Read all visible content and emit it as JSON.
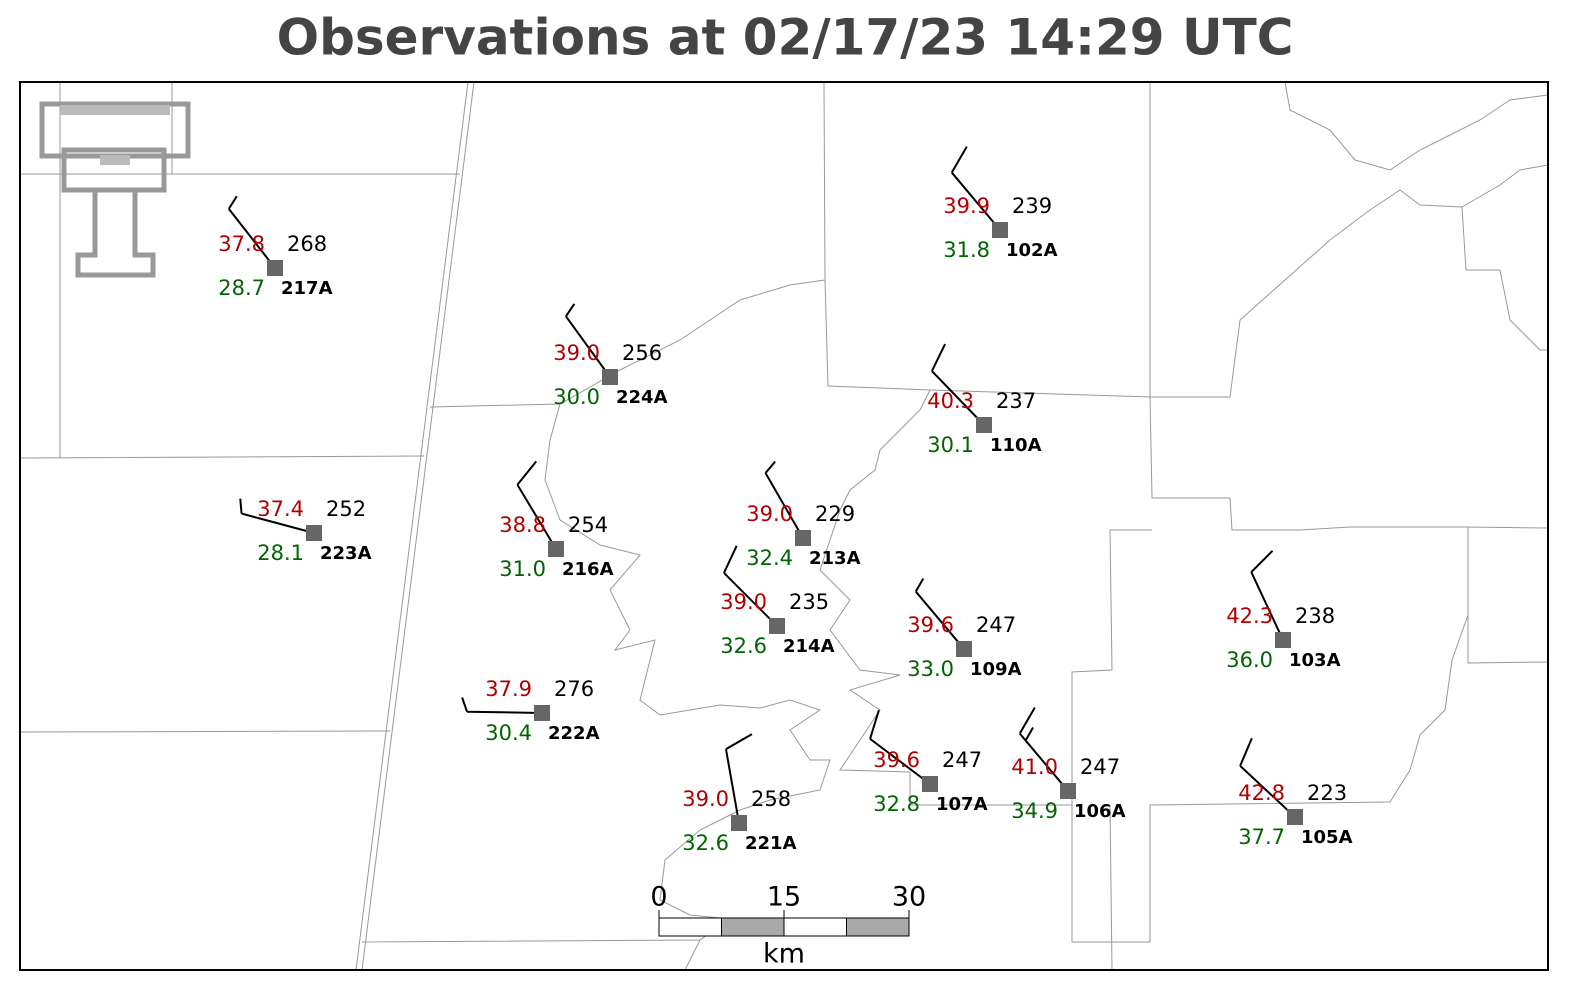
{
  "title": "Observations at 02/17/23 14:29 UTC",
  "stations": [
    {
      "id": "217A",
      "temperature": "37.8",
      "dewpoint": "28.7",
      "value": 268,
      "wind_dir": 322,
      "wind_speed": 5
    },
    {
      "id": "224A",
      "temperature": "39.0",
      "dewpoint": "30.0",
      "value": 256,
      "wind_dir": 324,
      "wind_speed": 5
    },
    {
      "id": "102A",
      "temperature": "39.9",
      "dewpoint": "31.8",
      "value": 239,
      "wind_dir": 320,
      "wind_speed": 10
    },
    {
      "id": "110A",
      "temperature": "40.3",
      "dewpoint": "30.1",
      "value": 237,
      "wind_dir": 316,
      "wind_speed": 10
    },
    {
      "id": "223A",
      "temperature": "37.4",
      "dewpoint": "28.1",
      "value": 252,
      "wind_dir": 285,
      "wind_speed": 5
    },
    {
      "id": "216A",
      "temperature": "38.8",
      "dewpoint": "31.0",
      "value": 254,
      "wind_dir": 329,
      "wind_speed": 10
    },
    {
      "id": "213A",
      "temperature": "39.0",
      "dewpoint": "32.4",
      "value": 229,
      "wind_dir": 330,
      "wind_speed": 5
    },
    {
      "id": "214A",
      "temperature": "39.0",
      "dewpoint": "32.6",
      "value": 235,
      "wind_dir": 315,
      "wind_speed": 10
    },
    {
      "id": "109A",
      "temperature": "39.6",
      "dewpoint": "33.0",
      "value": 247,
      "wind_dir": 320,
      "wind_speed": 5
    },
    {
      "id": "222A",
      "temperature": "37.9",
      "dewpoint": "30.4",
      "value": 276,
      "wind_dir": 271,
      "wind_speed": 5
    },
    {
      "id": "221A",
      "temperature": "39.0",
      "dewpoint": "32.6",
      "value": 258,
      "wind_dir": 350,
      "wind_speed": 10
    },
    {
      "id": "107A",
      "temperature": "39.6",
      "dewpoint": "32.8",
      "value": 247,
      "wind_dir": 307,
      "wind_speed": 10
    },
    {
      "id": "106A",
      "temperature": "41.0",
      "dewpoint": "34.9",
      "value": 247,
      "wind_dir": 320,
      "wind_speed": 15
    },
    {
      "id": "103A",
      "temperature": "42.3",
      "dewpoint": "36.0",
      "value": 238,
      "wind_dir": 335,
      "wind_speed": 10
    },
    {
      "id": "105A",
      "temperature": "42.8",
      "dewpoint": "37.7",
      "value": 223,
      "wind_dir": 313,
      "wind_speed": 10
    }
  ],
  "scale_bar": {
    "ticks": [
      0,
      15,
      30
    ],
    "unit": "km"
  }
}
